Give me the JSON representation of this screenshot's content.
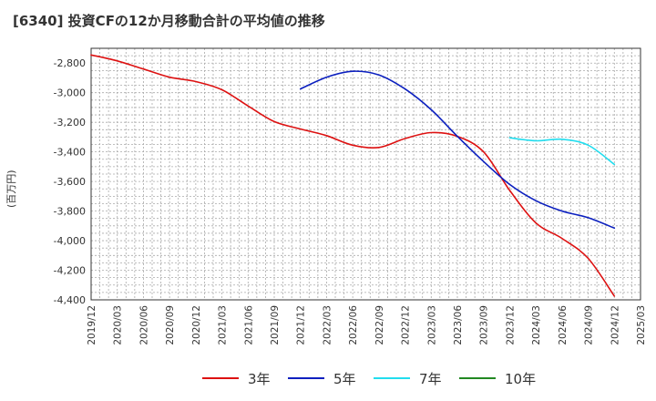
{
  "chart_data": {
    "type": "line",
    "title": "[6340]  投資CFの12か月移動合計の平均値の推移",
    "ylabel": "(百万円)",
    "ylim": [
      -4400,
      -2700
    ],
    "yticks": [
      -2800,
      -3000,
      -3200,
      -3400,
      -3600,
      -3800,
      -4000,
      -4200,
      -4400
    ],
    "ytick_labels": [
      "-2,800",
      "-3,000",
      "-3,200",
      "-3,400",
      "-3,600",
      "-3,800",
      "-4,000",
      "-4,200",
      "-4,400"
    ],
    "xticks": [
      "2019/12",
      "2020/03",
      "2020/06",
      "2020/09",
      "2020/12",
      "2021/03",
      "2021/06",
      "2021/09",
      "2021/12",
      "2022/03",
      "2022/06",
      "2022/09",
      "2022/12",
      "2023/03",
      "2023/06",
      "2023/09",
      "2023/12",
      "2024/03",
      "2024/06",
      "2024/09",
      "2024/12",
      "2025/03"
    ],
    "grid": true,
    "legend_position": "bottom",
    "series": [
      {
        "name": "3年",
        "color": "#dd1111",
        "points": [
          [
            "2019/12",
            -2745
          ],
          [
            "2020/03",
            -2785
          ],
          [
            "2020/06",
            -2840
          ],
          [
            "2020/09",
            -2895
          ],
          [
            "2020/12",
            -2925
          ],
          [
            "2021/03",
            -2980
          ],
          [
            "2021/06",
            -3090
          ],
          [
            "2021/09",
            -3195
          ],
          [
            "2021/12",
            -3245
          ],
          [
            "2022/03",
            -3290
          ],
          [
            "2022/06",
            -3355
          ],
          [
            "2022/09",
            -3370
          ],
          [
            "2022/12",
            -3310
          ],
          [
            "2023/03",
            -3270
          ],
          [
            "2023/06",
            -3295
          ],
          [
            "2023/09",
            -3400
          ],
          [
            "2023/12",
            -3660
          ],
          [
            "2024/03",
            -3880
          ],
          [
            "2024/06",
            -3985
          ],
          [
            "2024/09",
            -4120
          ],
          [
            "2024/12",
            -4375
          ]
        ]
      },
      {
        "name": "5年",
        "color": "#0b1fbf",
        "points": [
          [
            "2021/12",
            -2975
          ],
          [
            "2022/03",
            -2895
          ],
          [
            "2022/06",
            -2855
          ],
          [
            "2022/09",
            -2880
          ],
          [
            "2022/12",
            -2975
          ],
          [
            "2023/03",
            -3115
          ],
          [
            "2023/06",
            -3295
          ],
          [
            "2023/09",
            -3465
          ],
          [
            "2023/12",
            -3620
          ],
          [
            "2024/03",
            -3730
          ],
          [
            "2024/06",
            -3800
          ],
          [
            "2024/09",
            -3845
          ],
          [
            "2024/12",
            -3915
          ]
        ]
      },
      {
        "name": "7年",
        "color": "#22ddee",
        "points": [
          [
            "2023/12",
            -3305
          ],
          [
            "2024/03",
            -3325
          ],
          [
            "2024/06",
            -3315
          ],
          [
            "2024/09",
            -3355
          ],
          [
            "2024/12",
            -3485
          ]
        ]
      },
      {
        "name": "10年",
        "color": "#228822",
        "points": []
      }
    ]
  }
}
